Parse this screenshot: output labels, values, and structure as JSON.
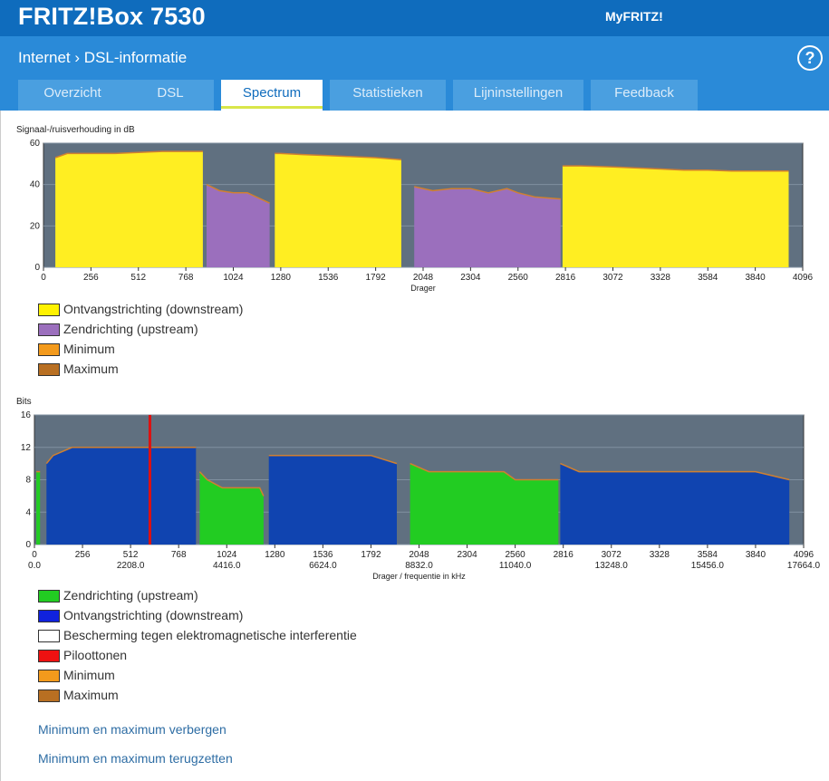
{
  "header": {
    "brand": "FRITZ!Box 7530",
    "myfritz": "MyFRITZ!"
  },
  "breadcrumb": {
    "section": "Internet",
    "separator": "›",
    "page": "DSL-informatie"
  },
  "help_label": "?",
  "tabs": [
    {
      "label": "Overzicht",
      "active": false
    },
    {
      "label": "DSL",
      "active": false
    },
    {
      "label": "Spectrum",
      "active": true
    },
    {
      "label": "Statistieken",
      "active": false
    },
    {
      "label": "Lijninstellingen",
      "active": false
    },
    {
      "label": "Feedback",
      "active": false
    }
  ],
  "snr_chart": {
    "title": "Signaal-/ruisverhouding in dB",
    "xlabel": "Drager",
    "x_ticks": [
      "0",
      "256",
      "512",
      "768",
      "1024",
      "1280",
      "1536",
      "1792",
      "2048",
      "2304",
      "2560",
      "2816",
      "3072",
      "3328",
      "3584",
      "3840",
      "4096"
    ],
    "y_ticks": [
      "0",
      "20",
      "40",
      "60"
    ],
    "legend": [
      {
        "label": "Ontvangstrichting (downstream)",
        "color": "#fff200"
      },
      {
        "label": "Zendrichting (upstream)",
        "color": "#9b6fbd"
      },
      {
        "label": "Minimum",
        "color": "#f39a1c"
      },
      {
        "label": "Maximum",
        "color": "#b86f22"
      }
    ]
  },
  "bits_chart": {
    "title": "Bits",
    "xlabel": "Drager / frequentie in kHz",
    "x_ticks": [
      "0",
      "256",
      "512",
      "768",
      "1024",
      "1280",
      "1536",
      "1792",
      "2048",
      "2304",
      "2560",
      "2816",
      "3072",
      "3328",
      "3584",
      "3840",
      "4096"
    ],
    "freq_ticks": [
      {
        "carrier": 0,
        "label": "0.0"
      },
      {
        "carrier": 512,
        "label": "2208.0"
      },
      {
        "carrier": 1024,
        "label": "4416.0"
      },
      {
        "carrier": 1536,
        "label": "6624.0"
      },
      {
        "carrier": 2048,
        "label": "8832.0"
      },
      {
        "carrier": 2560,
        "label": "11040.0"
      },
      {
        "carrier": 3072,
        "label": "13248.0"
      },
      {
        "carrier": 3584,
        "label": "15456.0"
      },
      {
        "carrier": 4096,
        "label": "17664.0"
      }
    ],
    "y_ticks": [
      "0",
      "4",
      "8",
      "12",
      "16"
    ],
    "legend": [
      {
        "label": "Zendrichting (upstream)",
        "color": "#22cc22"
      },
      {
        "label": "Ontvangstrichting (downstream)",
        "color": "#1022dd"
      },
      {
        "label": "Bescherming tegen elektromagnetische interferentie",
        "color": "#ffffff"
      },
      {
        "label": "Piloottonen",
        "color": "#ee1111"
      },
      {
        "label": "Minimum",
        "color": "#f39a1c"
      },
      {
        "label": "Maximum",
        "color": "#b86f22"
      }
    ]
  },
  "links": {
    "hide_minmax": "Minimum en maximum verbergen",
    "reset_minmax": "Minimum en maximum terugzetten"
  },
  "colors": {
    "plot_bg": "#607080",
    "downstream_snr": "#ffee22",
    "upstream_snr": "#9b6fbd",
    "downstream_bits": "#1044b0",
    "upstream_bits": "#22cc22",
    "pilot": "#dd1111",
    "minmax_line": "#d08030"
  },
  "chart_data": [
    {
      "type": "area",
      "title": "Signaal-/ruisverhouding in dB",
      "xlabel": "Drager",
      "ylabel": "",
      "xlim": [
        0,
        4096
      ],
      "ylim": [
        0,
        60
      ],
      "series": [
        {
          "name": "Ontvangstrichting (downstream)",
          "segments": [
            {
              "x": [
                64,
                128,
                256,
                384,
                512,
                640,
                768,
                860
              ],
              "y": [
                53,
                55,
                55,
                55,
                55.5,
                56,
                56,
                56
              ]
            },
            {
              "x": [
                1248,
                1280,
                1400,
                1536,
                1650,
                1792,
                1930
              ],
              "y": [
                55,
                55,
                54.5,
                54,
                53.5,
                53,
                52
              ]
            },
            {
              "x": [
                2800,
                2900,
                3072,
                3200,
                3328,
                3456,
                3584,
                3712,
                3840,
                4020
              ],
              "y": [
                49,
                49,
                48.5,
                48,
                47.5,
                47,
                47,
                46.5,
                46.5,
                46.5
              ]
            }
          ]
        },
        {
          "name": "Zendrichting (upstream)",
          "segments": [
            {
              "x": [
                880,
                950,
                1024,
                1100,
                1220
              ],
              "y": [
                40,
                37,
                36,
                36,
                31
              ]
            },
            {
              "x": [
                2000,
                2100,
                2200,
                2304,
                2400,
                2500,
                2560,
                2650,
                2790
              ],
              "y": [
                39,
                37,
                38,
                38,
                36,
                38,
                36,
                34,
                33
              ]
            }
          ]
        }
      ]
    },
    {
      "type": "area",
      "title": "Bits",
      "xlabel": "Drager / frequentie in kHz",
      "ylabel": "",
      "xlim": [
        0,
        4096
      ],
      "ylim": [
        0,
        16
      ],
      "series": [
        {
          "name": "Zendrichting (upstream)",
          "segments": [
            {
              "x": [
                10,
                20,
                30
              ],
              "y": [
                9,
                9,
                9
              ]
            },
            {
              "x": [
                880,
                920,
                1000,
                1100,
                1200,
                1220
              ],
              "y": [
                9,
                8,
                7,
                7,
                7,
                6
              ]
            },
            {
              "x": [
                2000,
                2100,
                2200,
                2304,
                2400,
                2500,
                2560,
                2650,
                2790
              ],
              "y": [
                10,
                9,
                9,
                9,
                9,
                9,
                8,
                8,
                8
              ]
            }
          ]
        },
        {
          "name": "Ontvangstrichting (downstream)",
          "segments": [
            {
              "x": [
                64,
                100,
                200,
                256,
                400,
                512,
                700,
                768,
                860
              ],
              "y": [
                10,
                11,
                12,
                12,
                12,
                12,
                12,
                12,
                12
              ]
            },
            {
              "x": [
                1248,
                1280,
                1400,
                1536,
                1650,
                1792,
                1930
              ],
              "y": [
                11,
                11,
                11,
                11,
                11,
                11,
                10
              ]
            },
            {
              "x": [
                2800,
                2900,
                3072,
                3200,
                3328,
                3456,
                3584,
                3712,
                3840,
                4020
              ],
              "y": [
                10,
                9,
                9,
                9,
                9,
                9,
                9,
                9,
                9,
                8
              ]
            }
          ]
        },
        {
          "name": "Piloottonen",
          "x": [
            615
          ],
          "y": [
            16
          ]
        }
      ]
    }
  ]
}
